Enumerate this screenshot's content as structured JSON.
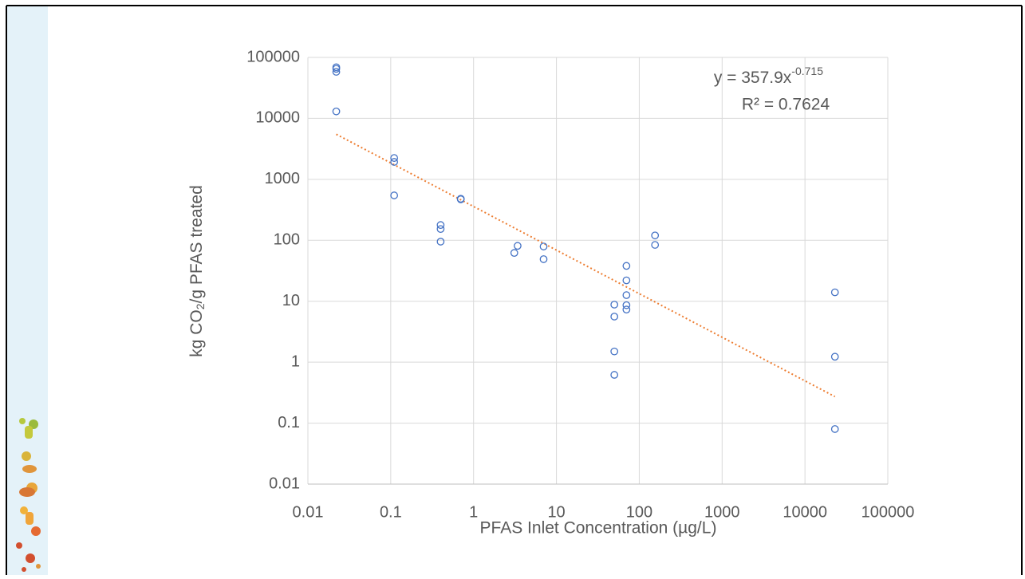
{
  "chart_data": {
    "type": "scatter",
    "x_label": "PFAS Inlet Concentration (µg/L)",
    "y_label_parts": [
      "kg CO",
      "2",
      "/g PFAS treated"
    ],
    "equation": "y = 357.9x",
    "equation_exponent": "-0.715",
    "r_squared": "R² = 0.7624",
    "log_x": true,
    "log_y": true,
    "grid": true,
    "xlim": [
      0.01,
      100000
    ],
    "ylim": [
      0.01,
      100000
    ],
    "xticks": [
      0.01,
      0.1,
      1,
      10,
      100,
      1000,
      10000,
      100000
    ],
    "yticks": [
      0.01,
      0.1,
      1,
      10,
      100,
      1000,
      10000,
      100000
    ],
    "trendline": {
      "coefficient": 357.9,
      "exponent": -0.715,
      "color": "#ed7d31"
    },
    "series": [
      {
        "color": "#4472c4",
        "x": [
          0.022,
          0.022,
          0.022,
          0.022,
          0.11,
          0.11,
          0.11,
          0.4,
          0.4,
          0.4,
          0.7,
          0.7,
          3.1,
          3.4,
          7,
          7,
          50,
          50,
          50,
          50,
          70,
          70,
          70,
          70,
          70,
          155,
          155,
          23000,
          23000,
          23000
        ],
        "values": [
          69000,
          65000,
          58000,
          13000,
          2240,
          1930,
          545,
          178,
          153,
          95,
          480,
          470,
          62,
          81,
          79,
          49,
          8.8,
          5.6,
          1.5,
          0.62,
          38,
          22,
          12.6,
          8.6,
          7.3,
          120,
          84,
          14,
          1.23,
          0.08
        ]
      }
    ]
  }
}
